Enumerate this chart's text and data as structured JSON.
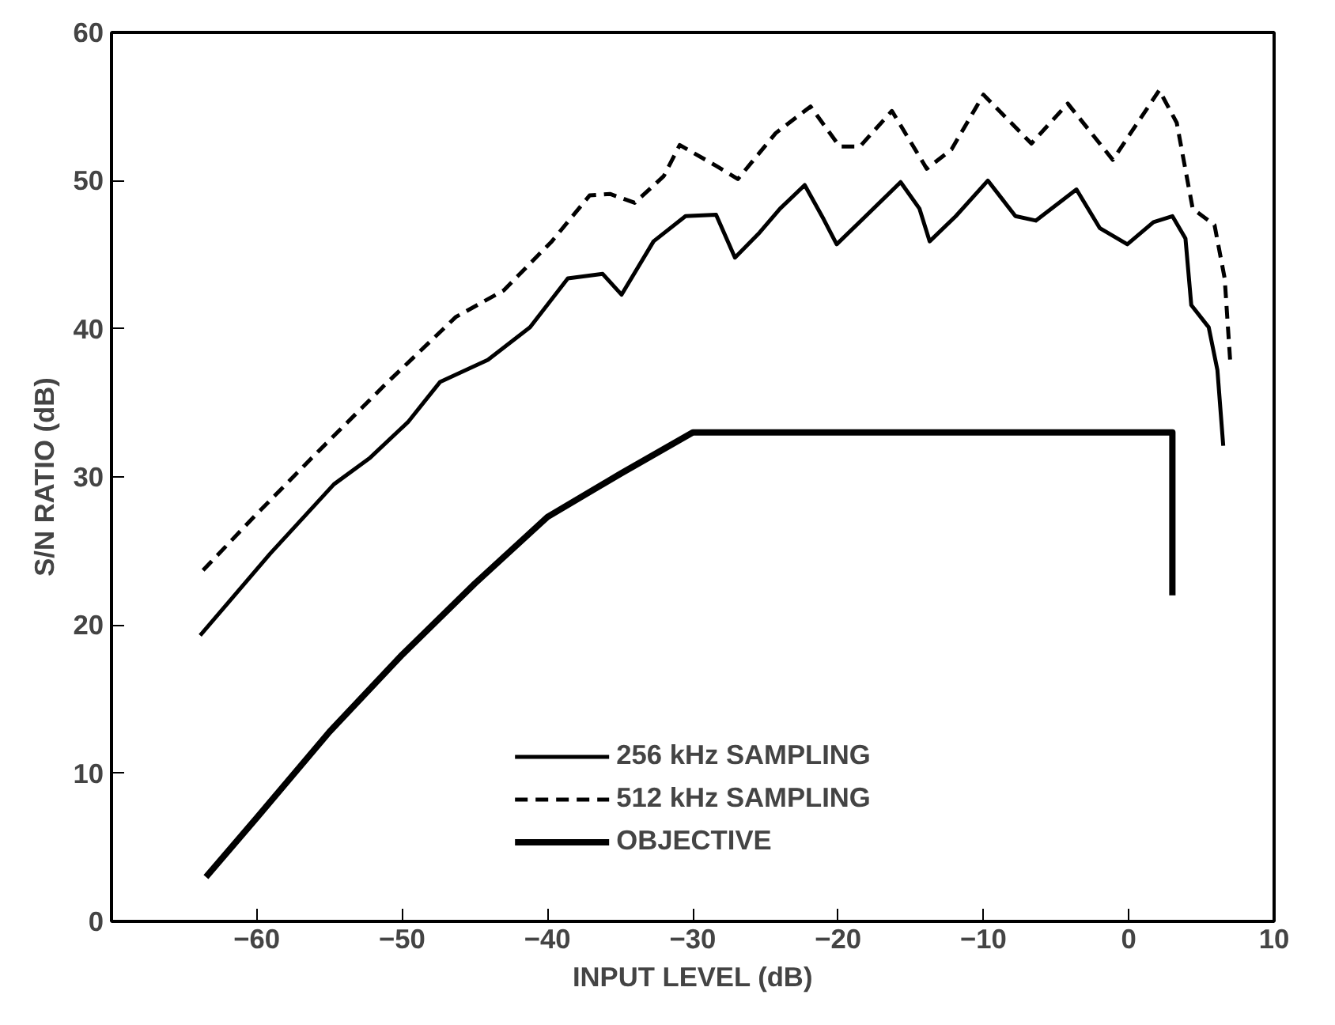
{
  "chart_data": {
    "type": "line",
    "xlabel": "INPUT LEVEL (dB)",
    "ylabel": "S/N RATIO (dB)",
    "xlim": [
      -70,
      10
    ],
    "ylim": [
      0,
      60
    ],
    "xticks": [
      -60,
      -50,
      -40,
      -30,
      -20,
      -10,
      0,
      10
    ],
    "yticks": [
      0,
      10,
      20,
      30,
      40,
      50,
      60
    ],
    "grid": false,
    "legend": "bottom",
    "marker": "none",
    "series": [
      {
        "name": "256 kHz SAMPLING",
        "color": "#000000",
        "line_style": "solid",
        "x": [
          -63.9,
          -59.1,
          -54.7,
          -52.2,
          -49.6,
          -47.4,
          -44.1,
          -41.2,
          -38.6,
          -36.2,
          -34.9,
          -32.7,
          -30.5,
          -28.4,
          -27.1,
          -25.4,
          -24.0,
          -22.3,
          -21.0,
          -20.1,
          -18.1,
          -15.7,
          -14.4,
          -13.7,
          -11.9,
          -9.7,
          -7.8,
          -6.4,
          -3.6,
          -2.0,
          -0.1,
          1.7,
          3.0,
          3.9,
          4.3,
          5.5,
          6.1,
          6.5
        ],
        "values": [
          19.3,
          24.8,
          29.5,
          31.3,
          33.7,
          36.4,
          37.9,
          40.1,
          43.4,
          43.7,
          42.3,
          45.9,
          47.6,
          47.7,
          44.8,
          46.5,
          48.1,
          49.7,
          47.4,
          45.7,
          47.6,
          49.9,
          48.1,
          45.9,
          47.6,
          50.0,
          47.6,
          47.3,
          49.4,
          46.8,
          45.7,
          47.2,
          47.6,
          46.1,
          41.6,
          40.1,
          37.2,
          32.1
        ]
      },
      {
        "name": "512 kHz SAMPLING",
        "color": "#000000",
        "line_style": "dashed",
        "x": [
          -63.7,
          -60.2,
          -56.2,
          -51.1,
          -46.3,
          -43.0,
          -39.7,
          -37.1,
          -35.7,
          -34.0,
          -32.0,
          -30.9,
          -28.4,
          -26.9,
          -24.3,
          -21.9,
          -19.9,
          -18.5,
          -16.3,
          -13.9,
          -12.2,
          -10.0,
          -6.7,
          -4.2,
          -1.1,
          2.1,
          3.3,
          4.4,
          5.9,
          6.6,
          7.0
        ],
        "values": [
          23.7,
          27.3,
          31.3,
          36.3,
          40.8,
          42.6,
          45.9,
          49.0,
          49.1,
          48.5,
          50.3,
          52.4,
          51.0,
          50.1,
          53.2,
          55.0,
          52.3,
          52.3,
          54.7,
          50.8,
          52.1,
          55.8,
          52.5,
          55.2,
          51.4,
          56.1,
          53.9,
          48.1,
          47.0,
          43.4,
          37.5
        ]
      },
      {
        "name": "OBJECTIVE",
        "color": "#000000",
        "line_style": "solid",
        "x": [
          -63.5,
          -60,
          -55,
          -50,
          -45,
          -40,
          -35,
          -30,
          3,
          3
        ],
        "values": [
          3,
          7,
          12.8,
          18,
          22.8,
          27.3,
          30.2,
          33,
          33,
          22
        ]
      }
    ]
  }
}
